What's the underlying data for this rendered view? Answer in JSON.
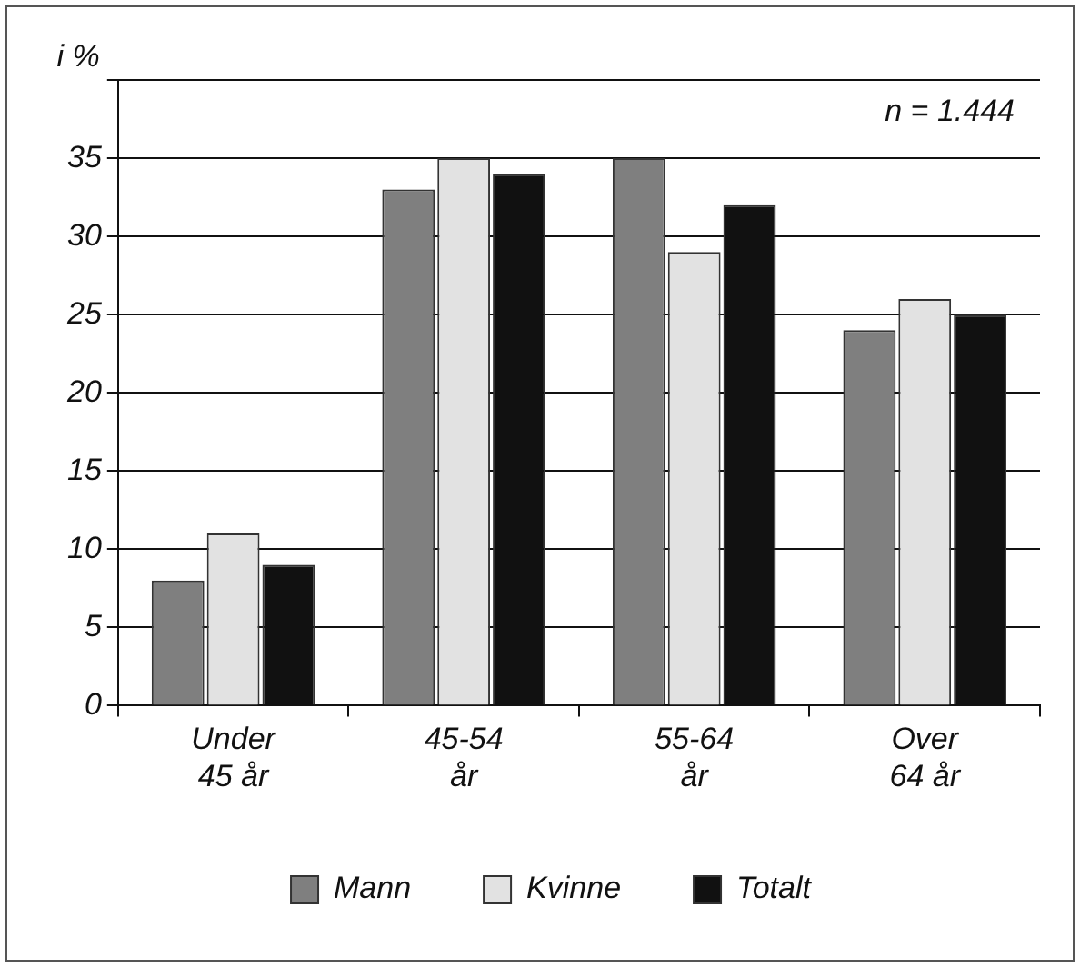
{
  "chart_data": {
    "type": "bar",
    "ylabel": "i %",
    "categories": [
      "Under\n45 år",
      "45-54\når",
      "55-64\når",
      "Over\n64 år"
    ],
    "series": [
      {
        "name": "Mann",
        "color": "#7f7f7f",
        "values": [
          8,
          33,
          35,
          24
        ]
      },
      {
        "name": "Kvinne",
        "color": "#e2e2e2",
        "values": [
          11,
          35,
          29,
          26
        ]
      },
      {
        "name": "Totalt",
        "color": "#111111",
        "values": [
          9,
          34,
          32,
          25
        ]
      }
    ],
    "ylim": [
      0,
      40
    ],
    "yticks": [
      0,
      5,
      10,
      15,
      20,
      25,
      30,
      35
    ],
    "grid": "y",
    "legend": "bottom",
    "annotations": [
      "n = 1.444"
    ]
  }
}
